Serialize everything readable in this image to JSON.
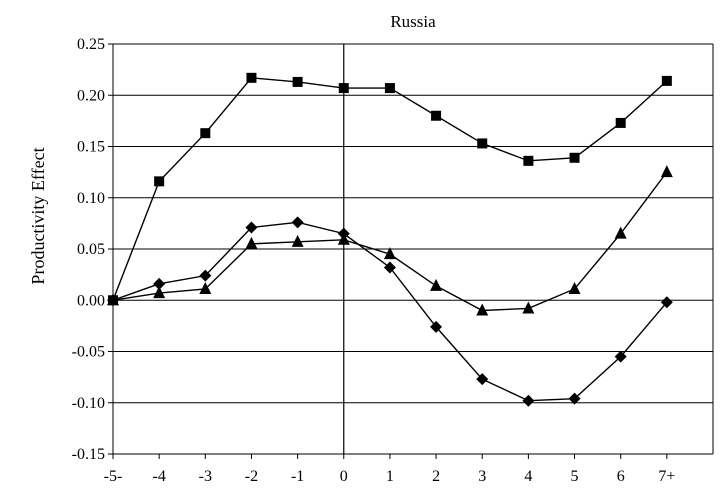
{
  "chart_data": {
    "type": "line",
    "title": "Russia",
    "xlabel": "",
    "ylabel": "Productivity Effect",
    "categories": [
      "-5-",
      "-4",
      "-3",
      "-2",
      "-1",
      "0",
      "1",
      "2",
      "3",
      "4",
      "5",
      "6",
      "7+"
    ],
    "ylim": [
      -0.15,
      0.25
    ],
    "yticks": [
      "0.25",
      "0.20",
      "0.15",
      "0.10",
      "0.05",
      "0.00",
      "-0.05",
      "-0.10",
      "-0.15"
    ],
    "ytick_values": [
      0.25,
      0.2,
      0.15,
      0.1,
      0.05,
      0.0,
      -0.05,
      -0.1,
      -0.15
    ],
    "grid": "horizontal",
    "vertical_reference_line_at": "0",
    "series": [
      {
        "marker": "square",
        "color": "#000000",
        "values": [
          0.0,
          0.116,
          0.163,
          0.217,
          0.213,
          0.207,
          0.207,
          0.18,
          0.153,
          0.136,
          0.139,
          0.173,
          0.214
        ]
      },
      {
        "marker": "diamond",
        "color": "#000000",
        "values": [
          0.0,
          0.016,
          0.024,
          0.071,
          0.076,
          0.065,
          0.032,
          -0.026,
          -0.077,
          -0.098,
          -0.096,
          -0.055,
          -0.002
        ]
      },
      {
        "marker": "triangle",
        "color": "#000000",
        "values": [
          0.0,
          0.007,
          0.011,
          0.055,
          0.057,
          0.059,
          0.045,
          0.014,
          -0.01,
          -0.008,
          0.011,
          0.065,
          0.125
        ]
      }
    ]
  }
}
